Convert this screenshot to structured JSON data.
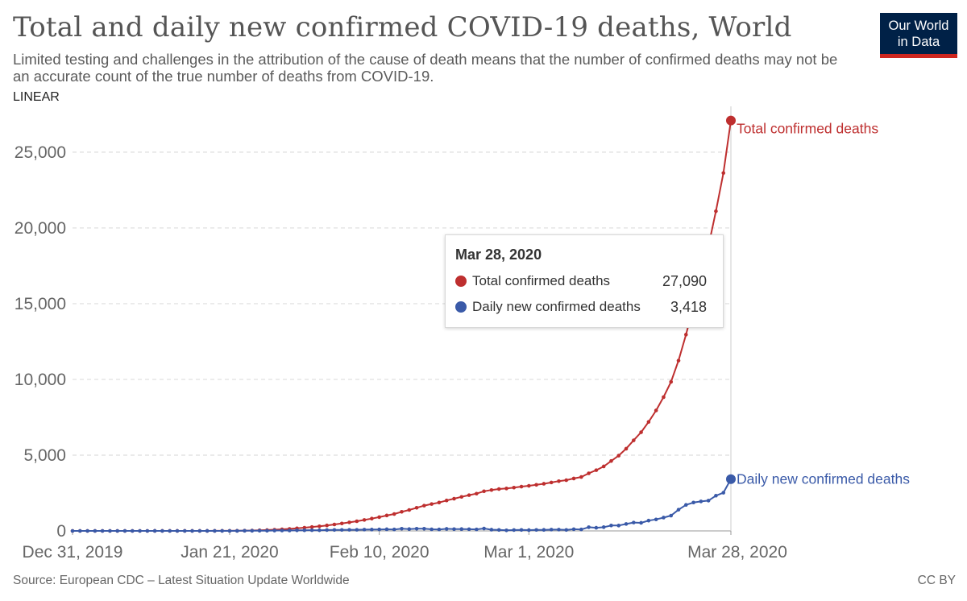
{
  "header": {
    "title": "Total and daily new confirmed COVID-19 deaths, World",
    "subtitle": "Limited testing and challenges in the attribution of the cause of death means that the number of confirmed deaths may not be an accurate count of the true number of deaths from COVID-19.",
    "logo_line1": "Our World",
    "logo_line2": "in Data",
    "scale": "LINEAR"
  },
  "tooltip": {
    "date": "Mar 28, 2020",
    "rows": [
      {
        "name": "Total confirmed deaths",
        "value": "27,090"
      },
      {
        "name": "Daily new confirmed deaths",
        "value": "3,418"
      }
    ]
  },
  "footer": {
    "source": "Source: European CDC – Latest Situation Update Worldwide",
    "license": "CC BY"
  },
  "colors": {
    "total": "#be2f2f",
    "daily": "#3a5aa8",
    "grid": "#dddddd",
    "logo_bg": "#002147",
    "logo_bar": "#ce261e"
  },
  "chart_data": {
    "type": "line",
    "title": "Total and daily new confirmed COVID-19 deaths, World",
    "x_range": [
      "Dec 31, 2019",
      "Mar 28, 2020"
    ],
    "x_ticks": [
      {
        "label": "Dec 31, 2019",
        "day": 0
      },
      {
        "label": "Jan 21, 2020",
        "day": 21
      },
      {
        "label": "Feb 10, 2020",
        "day": 41
      },
      {
        "label": "Mar 1, 2020",
        "day": 61
      },
      {
        "label": "Mar 28, 2020",
        "day": 88
      }
    ],
    "y_ticks": [
      0,
      5000,
      10000,
      15000,
      20000,
      25000
    ],
    "y_tick_labels": [
      "0",
      "5,000",
      "10,000",
      "15,000",
      "20,000",
      "25,000"
    ],
    "ylim": [
      0,
      27600
    ],
    "grid": true,
    "series": [
      {
        "name": "Total confirmed deaths",
        "values": [
          0,
          0,
          0,
          0,
          0,
          0,
          0,
          0,
          0,
          0,
          0,
          1,
          1,
          1,
          1,
          1,
          1,
          1,
          2,
          3,
          4,
          6,
          9,
          17,
          25,
          41,
          56,
          80,
          106,
          132,
          170,
          213,
          259,
          304,
          362,
          426,
          492,
          565,
          638,
          724,
          813,
          910,
          1018,
          1115,
          1261,
          1383,
          1526,
          1669,
          1775,
          1873,
          2009,
          2126,
          2247,
          2360,
          2460,
          2618,
          2699,
          2763,
          2800,
          2858,
          2923,
          2977,
          3043,
          3112,
          3198,
          3284,
          3348,
          3460,
          3558,
          3802,
          4009,
          4256,
          4614,
          4968,
          5427,
          5979,
          6513,
          7194,
          7952,
          8831,
          9840,
          11241,
          12957,
          14831,
          16777,
          18777,
          21103,
          23624,
          27090
        ]
      },
      {
        "name": "Daily new confirmed deaths",
        "values": [
          0,
          0,
          0,
          0,
          0,
          0,
          0,
          0,
          0,
          0,
          0,
          1,
          0,
          0,
          0,
          0,
          0,
          0,
          1,
          1,
          1,
          2,
          3,
          8,
          8,
          16,
          15,
          24,
          26,
          26,
          38,
          43,
          46,
          45,
          58,
          64,
          66,
          73,
          73,
          86,
          89,
          97,
          108,
          97,
          146,
          122,
          143,
          143,
          106,
          98,
          136,
          117,
          121,
          113,
          100,
          158,
          81,
          64,
          37,
          58,
          65,
          54,
          66,
          69,
          86,
          86,
          64,
          112,
          98,
          244,
          207,
          247,
          358,
          354,
          459,
          552,
          534,
          681,
          758,
          879,
          1009,
          1401,
          1716,
          1874,
          1946,
          2000,
          2326,
          2521,
          3418
        ]
      }
    ]
  }
}
